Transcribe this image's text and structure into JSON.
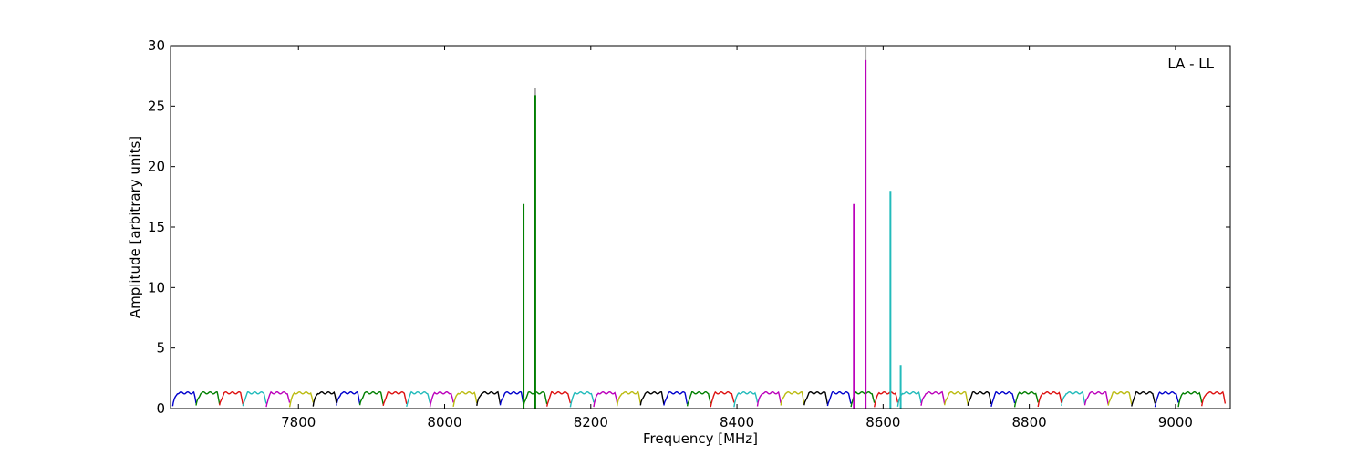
{
  "chart_data": {
    "type": "line",
    "title": "",
    "xlabel": "Frequency [MHz]",
    "ylabel": "Amplitude [arbitrary units]",
    "annotation": "LA - LL",
    "xlim": [
      7625,
      9075
    ],
    "ylim": [
      0,
      30
    ],
    "xticks": [
      7800,
      8000,
      8200,
      8400,
      8600,
      8800,
      9000
    ],
    "yticks": [
      0,
      5,
      10,
      15,
      20,
      25,
      30
    ],
    "grid": false,
    "legend": "none",
    "channel_width_mhz": 32,
    "channel_start_mhz": 7628,
    "channel_count": 45,
    "channel_colors": [
      "#0000cc",
      "#007f00",
      "#dd1111",
      "#22bbbb",
      "#bb00bb",
      "#bbbb11",
      "#000000"
    ],
    "channel_baseline": [
      0.2,
      1.3
    ],
    "spikes": [
      {
        "x": 8108,
        "y": 16.9,
        "color": "#007f00"
      },
      {
        "x": 8124,
        "y": 26.5,
        "color": "#aaaaaa"
      },
      {
        "x": 8124,
        "y": 25.9,
        "color": "#007f00"
      },
      {
        "x": 8560,
        "y": 16.9,
        "color": "#bb00bb"
      },
      {
        "x": 8576,
        "y": 29.9,
        "color": "#aaaaaa"
      },
      {
        "x": 8576,
        "y": 28.8,
        "color": "#bb00bb"
      },
      {
        "x": 8610,
        "y": 18.0,
        "color": "#22bbbb"
      },
      {
        "x": 8624,
        "y": 3.6,
        "color": "#22bbbb"
      }
    ]
  }
}
